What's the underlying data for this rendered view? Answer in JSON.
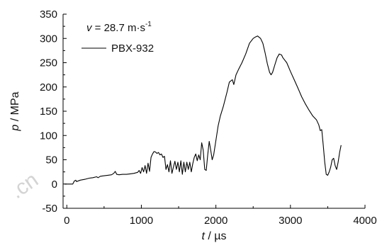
{
  "watermark": ".cn",
  "chart_data": {
    "type": "line",
    "xlabel_var": "t",
    "xlabel_unit": " / µs",
    "ylabel_var": "p",
    "ylabel_unit": " / MPa",
    "xlim": [
      -50,
      4000
    ],
    "ylim": [
      -50,
      350
    ],
    "xticks": [
      0,
      1000,
      2000,
      3000,
      4000
    ],
    "yticks": [
      -50,
      0,
      50,
      100,
      150,
      200,
      250,
      300,
      350
    ],
    "grid": false,
    "annotation": {
      "var": "v",
      "text": " = 28.7 m·s",
      "sup": "-1"
    },
    "legend": {
      "placement": "top-left"
    },
    "series": [
      {
        "name": "PBX-932",
        "color": "#000000",
        "points": [
          [
            -30,
            0
          ],
          [
            80,
            0
          ],
          [
            100,
            6
          ],
          [
            120,
            8
          ],
          [
            130,
            5
          ],
          [
            180,
            8
          ],
          [
            250,
            10
          ],
          [
            300,
            12
          ],
          [
            350,
            13
          ],
          [
            400,
            15
          ],
          [
            420,
            13
          ],
          [
            450,
            16
          ],
          [
            500,
            17
          ],
          [
            550,
            18
          ],
          [
            600,
            19
          ],
          [
            630,
            22
          ],
          [
            650,
            26
          ],
          [
            670,
            20
          ],
          [
            700,
            19
          ],
          [
            750,
            20
          ],
          [
            800,
            20
          ],
          [
            850,
            21
          ],
          [
            900,
            22
          ],
          [
            950,
            24
          ],
          [
            970,
            28
          ],
          [
            990,
            22
          ],
          [
            1010,
            34
          ],
          [
            1030,
            25
          ],
          [
            1050,
            38
          ],
          [
            1070,
            22
          ],
          [
            1090,
            43
          ],
          [
            1110,
            26
          ],
          [
            1130,
            55
          ],
          [
            1150,
            62
          ],
          [
            1170,
            67
          ],
          [
            1190,
            66
          ],
          [
            1210,
            63
          ],
          [
            1230,
            65
          ],
          [
            1250,
            60
          ],
          [
            1270,
            62
          ],
          [
            1290,
            55
          ],
          [
            1310,
            57
          ],
          [
            1330,
            30
          ],
          [
            1350,
            40
          ],
          [
            1370,
            25
          ],
          [
            1390,
            48
          ],
          [
            1410,
            22
          ],
          [
            1430,
            35
          ],
          [
            1450,
            47
          ],
          [
            1470,
            30
          ],
          [
            1490,
            45
          ],
          [
            1510,
            25
          ],
          [
            1530,
            48
          ],
          [
            1550,
            20
          ],
          [
            1570,
            45
          ],
          [
            1590,
            25
          ],
          [
            1610,
            45
          ],
          [
            1630,
            30
          ],
          [
            1650,
            45
          ],
          [
            1670,
            25
          ],
          [
            1690,
            42
          ],
          [
            1710,
            55
          ],
          [
            1730,
            62
          ],
          [
            1750,
            48
          ],
          [
            1770,
            60
          ],
          [
            1790,
            50
          ],
          [
            1810,
            85
          ],
          [
            1830,
            70
          ],
          [
            1850,
            30
          ],
          [
            1870,
            28
          ],
          [
            1890,
            60
          ],
          [
            1910,
            88
          ],
          [
            1930,
            70
          ],
          [
            1950,
            50
          ],
          [
            1970,
            60
          ],
          [
            1990,
            80
          ],
          [
            2010,
            100
          ],
          [
            2030,
            120
          ],
          [
            2060,
            140
          ],
          [
            2100,
            160
          ],
          [
            2150,
            190
          ],
          [
            2180,
            210
          ],
          [
            2220,
            215
          ],
          [
            2240,
            205
          ],
          [
            2270,
            225
          ],
          [
            2300,
            235
          ],
          [
            2350,
            250
          ],
          [
            2400,
            268
          ],
          [
            2450,
            290
          ],
          [
            2500,
            300
          ],
          [
            2530,
            303
          ],
          [
            2560,
            305
          ],
          [
            2600,
            300
          ],
          [
            2630,
            290
          ],
          [
            2660,
            270
          ],
          [
            2690,
            248
          ],
          [
            2720,
            230
          ],
          [
            2740,
            225
          ],
          [
            2760,
            230
          ],
          [
            2790,
            245
          ],
          [
            2820,
            260
          ],
          [
            2850,
            268
          ],
          [
            2880,
            266
          ],
          [
            2900,
            260
          ],
          [
            2950,
            250
          ],
          [
            3000,
            232
          ],
          [
            3050,
            215
          ],
          [
            3100,
            198
          ],
          [
            3150,
            180
          ],
          [
            3200,
            165
          ],
          [
            3250,
            152
          ],
          [
            3300,
            140
          ],
          [
            3350,
            132
          ],
          [
            3380,
            122
          ],
          [
            3400,
            110
          ],
          [
            3420,
            112
          ],
          [
            3440,
            80
          ],
          [
            3460,
            45
          ],
          [
            3480,
            20
          ],
          [
            3500,
            18
          ],
          [
            3520,
            25
          ],
          [
            3540,
            35
          ],
          [
            3560,
            50
          ],
          [
            3580,
            53
          ],
          [
            3600,
            38
          ],
          [
            3620,
            30
          ],
          [
            3640,
            45
          ],
          [
            3660,
            65
          ],
          [
            3680,
            80
          ]
        ]
      }
    ]
  }
}
